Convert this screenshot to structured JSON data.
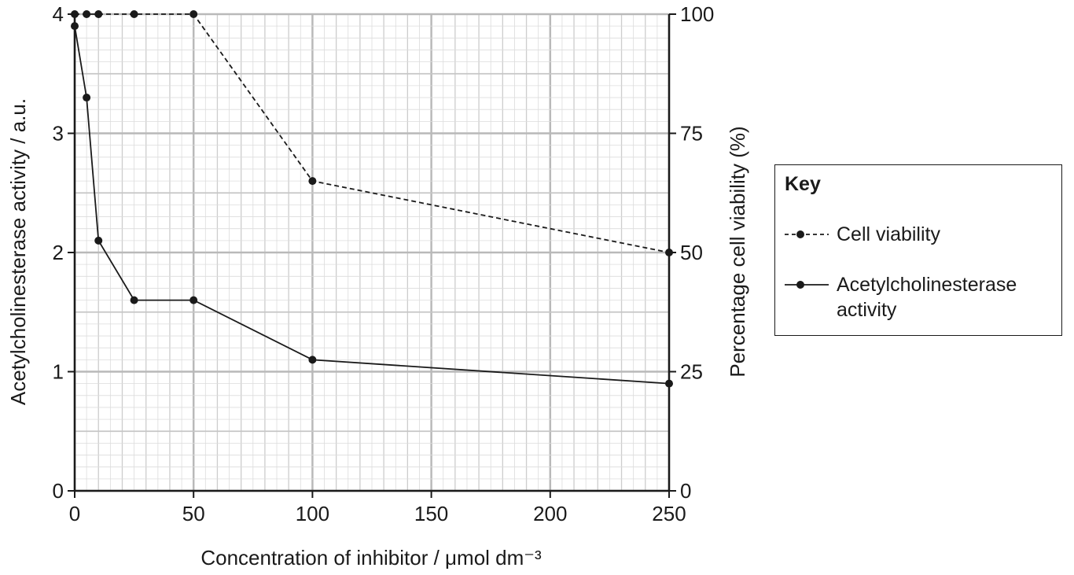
{
  "chart_data": {
    "type": "line",
    "xlabel": "Concentration of inhibitor / μmol dm⁻³",
    "ylabel_left": "Acetylcholinesterase activity / a.u.",
    "ylabel_right": "Percentage cell viability (%)",
    "xlim": [
      0,
      250
    ],
    "ylim_left": [
      0,
      4
    ],
    "ylim_right": [
      0,
      100
    ],
    "x_ticks": [
      "0",
      "50",
      "100",
      "150",
      "200",
      "250"
    ],
    "y_ticks_left": [
      "0",
      "1",
      "2",
      "3",
      "4"
    ],
    "y_ticks_right": [
      "0",
      "25",
      "50",
      "75",
      "100"
    ],
    "grid": true,
    "legend_position": "right",
    "series": [
      {
        "name": "Cell viability",
        "axis": "right",
        "style": "dashed",
        "x": [
          0,
          5,
          10,
          25,
          50,
          100,
          250
        ],
        "y": [
          100,
          100,
          100,
          100,
          100,
          65,
          50
        ]
      },
      {
        "name": "Acetylcholinesterase activity",
        "axis": "left",
        "style": "solid",
        "x": [
          0,
          5,
          10,
          25,
          50,
          100,
          250
        ],
        "y": [
          3.9,
          3.3,
          2.1,
          1.6,
          1.6,
          1.1,
          0.9
        ]
      }
    ]
  },
  "key": {
    "title": "Key",
    "item1": "Cell viability",
    "item2_line1": "Acetylcholinesterase",
    "item2_line2": "activity"
  }
}
